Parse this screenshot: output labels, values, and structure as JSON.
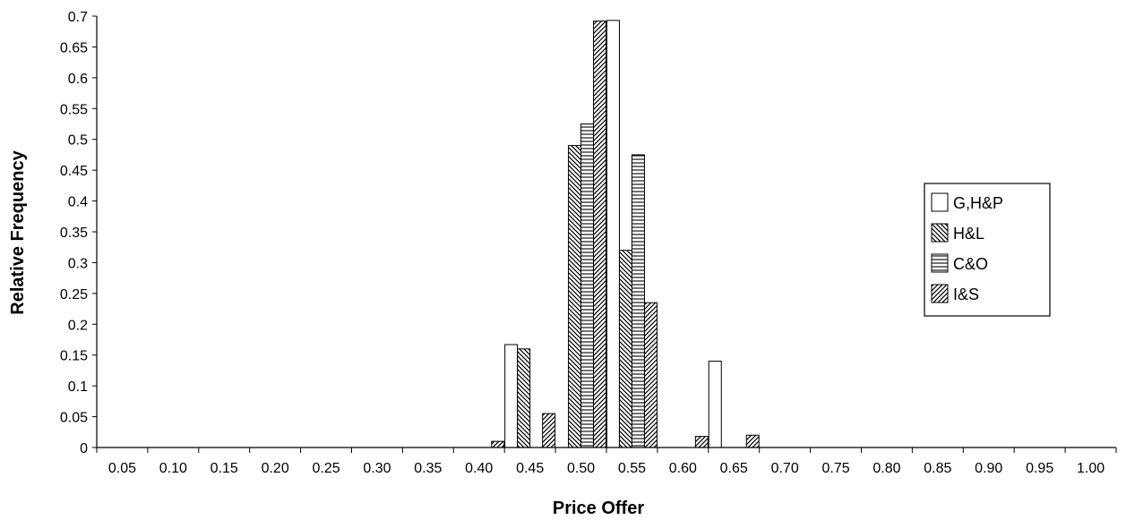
{
  "chart_data": {
    "type": "bar",
    "title": "",
    "xlabel": "Price Offer",
    "ylabel": "Relative Frequency",
    "ylim": [
      0,
      0.7
    ],
    "yticks": [
      "0",
      "0.05",
      "0.1",
      "0.15",
      "0.2",
      "0.25",
      "0.3",
      "0.35",
      "0.4",
      "0.45",
      "0.5",
      "0.55",
      "0.6",
      "0.65",
      "0.7"
    ],
    "categories": [
      "0.05",
      "0.10",
      "0.15",
      "0.20",
      "0.25",
      "0.30",
      "0.35",
      "0.40",
      "0.45",
      "0.50",
      "0.55",
      "0.60",
      "0.65",
      "0.70",
      "0.75",
      "0.80",
      "0.85",
      "0.90",
      "0.95",
      "1.00"
    ],
    "legend_position": "right",
    "grid": false,
    "series": [
      {
        "name": "G,H&P",
        "pattern": "none",
        "values": [
          0,
          0,
          0,
          0,
          0,
          0,
          0,
          0,
          0.167,
          0,
          0.693,
          0,
          0.14,
          0,
          0,
          0,
          0,
          0,
          0,
          0
        ]
      },
      {
        "name": "H&L",
        "pattern": "diag-back",
        "values": [
          0,
          0,
          0,
          0,
          0,
          0,
          0,
          0,
          0.16,
          0.49,
          0.32,
          0,
          0,
          0,
          0,
          0,
          0,
          0,
          0,
          0
        ]
      },
      {
        "name": "C&O",
        "pattern": "horizontal",
        "values": [
          0,
          0,
          0,
          0,
          0,
          0,
          0,
          0,
          0,
          0.525,
          0.475,
          0,
          0,
          0,
          0,
          0,
          0,
          0,
          0,
          0
        ]
      },
      {
        "name": "I&S",
        "pattern": "diag-forward",
        "values": [
          0,
          0,
          0,
          0,
          0,
          0,
          0,
          0.01,
          0.055,
          0.692,
          0.235,
          0.018,
          0.02,
          0,
          0,
          0,
          0,
          0,
          0,
          0
        ]
      }
    ]
  }
}
